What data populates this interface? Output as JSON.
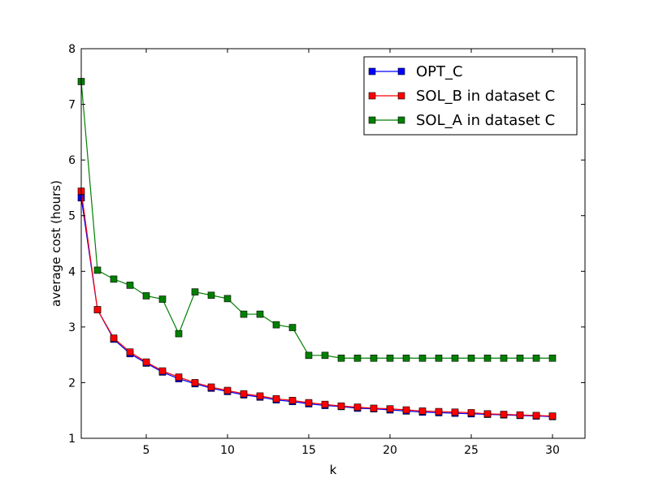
{
  "chart_data": {
    "type": "line",
    "xlabel": "k",
    "ylabel": "average cost (hours)",
    "xlim": [
      1,
      32
    ],
    "ylim": [
      1,
      8
    ],
    "xticks": [
      5,
      10,
      15,
      20,
      25,
      30
    ],
    "yticks": [
      1,
      2,
      3,
      4,
      5,
      6,
      7,
      8
    ],
    "grid": false,
    "legend_position": "top-right",
    "marker": "square",
    "x": [
      1,
      2,
      3,
      4,
      5,
      6,
      7,
      8,
      9,
      10,
      11,
      12,
      13,
      14,
      15,
      16,
      17,
      18,
      19,
      20,
      21,
      22,
      23,
      24,
      25,
      26,
      27,
      28,
      29,
      30
    ],
    "series": [
      {
        "name": "OPT_C",
        "color": "#0000ff",
        "values": [
          5.32,
          3.31,
          2.78,
          2.52,
          2.35,
          2.19,
          2.07,
          1.98,
          1.9,
          1.84,
          1.78,
          1.74,
          1.69,
          1.66,
          1.62,
          1.59,
          1.57,
          1.54,
          1.53,
          1.51,
          1.49,
          1.47,
          1.46,
          1.45,
          1.44,
          1.43,
          1.42,
          1.41,
          1.4,
          1.39
        ]
      },
      {
        "name": "SOL_B in dataset C",
        "color": "#ff0000",
        "values": [
          5.44,
          3.31,
          2.8,
          2.55,
          2.37,
          2.21,
          2.1,
          2.0,
          1.92,
          1.86,
          1.8,
          1.76,
          1.71,
          1.68,
          1.64,
          1.61,
          1.58,
          1.56,
          1.54,
          1.53,
          1.51,
          1.49,
          1.48,
          1.47,
          1.46,
          1.44,
          1.43,
          1.42,
          1.41,
          1.4
        ]
      },
      {
        "name": "SOL_A in dataset C",
        "color": "#008000",
        "values": [
          7.41,
          4.02,
          3.86,
          3.75,
          3.56,
          3.5,
          2.88,
          3.63,
          3.57,
          3.51,
          3.23,
          3.23,
          3.04,
          2.99,
          2.49,
          2.49,
          2.44,
          2.44,
          2.44,
          2.44,
          2.44,
          2.44,
          2.44,
          2.44,
          2.44,
          2.44,
          2.44,
          2.44,
          2.44,
          2.44
        ]
      }
    ]
  }
}
